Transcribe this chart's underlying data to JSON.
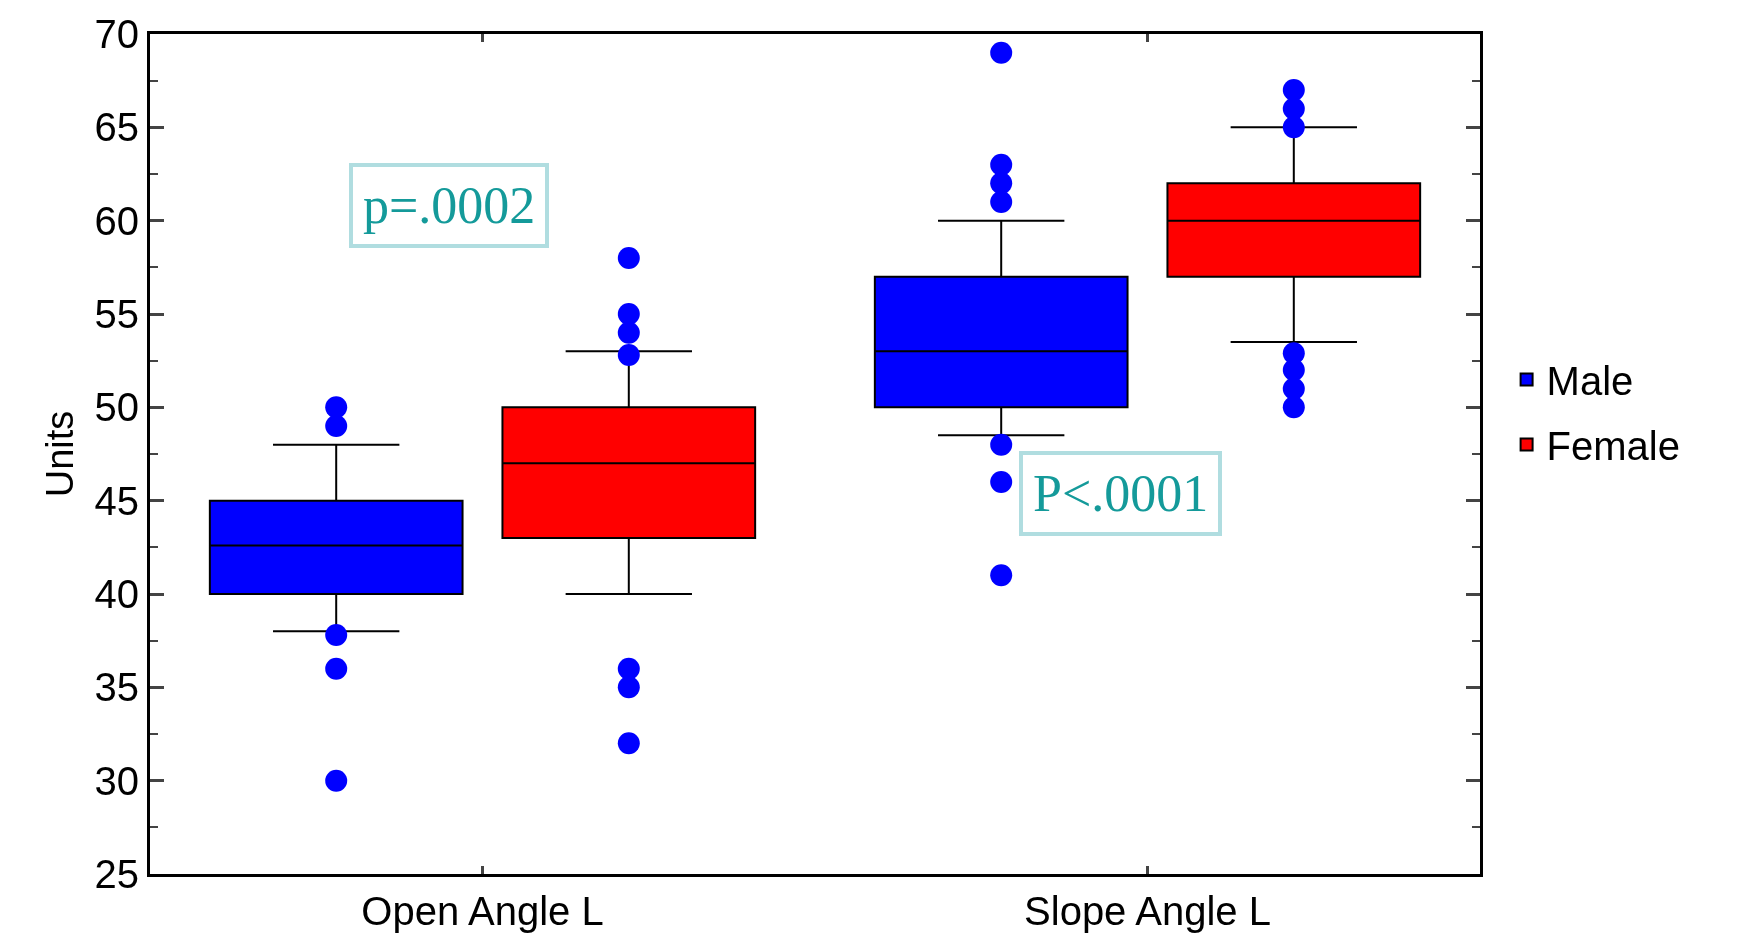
{
  "chart_data": {
    "type": "box",
    "categories": [
      "Open Angle L",
      "Slope Angle L"
    ],
    "ylabel": "Units",
    "ylim": [
      25,
      70
    ],
    "yticks": [
      25,
      30,
      35,
      40,
      45,
      50,
      55,
      60,
      65,
      70
    ],
    "legend": "right",
    "annotations": [
      "p=.0002",
      "P<.0001"
    ],
    "series": [
      {
        "name": "Male",
        "color": "#0000ff",
        "boxes": [
          {
            "low": 38,
            "q1": 40,
            "median": 42.6,
            "q3": 45,
            "high": 48,
            "outliers": [
              50,
              49,
              37.8,
              36,
              30
            ]
          },
          {
            "low": 48.5,
            "q1": 50,
            "median": 53,
            "q3": 57,
            "high": 60,
            "outliers": [
              69,
              63,
              62,
              61,
              48,
              46,
              41
            ]
          }
        ]
      },
      {
        "name": "Female",
        "color": "#ff0000",
        "boxes": [
          {
            "low": 40,
            "q1": 43,
            "median": 47,
            "q3": 50,
            "high": 53,
            "outliers": [
              58,
              55,
              54,
              52.8,
              36,
              35,
              32
            ]
          },
          {
            "low": 53.5,
            "q1": 57,
            "median": 60,
            "q3": 62,
            "high": 65,
            "outliers": [
              67,
              66,
              65,
              52.9,
              52,
              51,
              50
            ]
          }
        ]
      }
    ]
  }
}
